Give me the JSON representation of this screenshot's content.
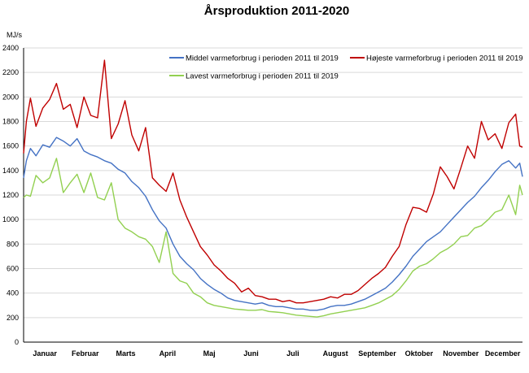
{
  "chart_data": {
    "type": "line",
    "title": "Årsproduktion 2011-2020",
    "ylabel": "MJ/s",
    "xlabel": "",
    "ylim": [
      0,
      2400
    ],
    "yticks": [
      0,
      200,
      400,
      600,
      800,
      1000,
      1200,
      1400,
      1600,
      1800,
      2000,
      2200,
      2400
    ],
    "xlim": [
      1,
      365
    ],
    "grid": true,
    "legend_position": "top",
    "month_labels": [
      "Januar",
      "Februar",
      "Marts",
      "April",
      "Maj",
      "Juni",
      "Juli",
      "August",
      "September",
      "Oktober",
      "November",
      "December"
    ],
    "series": [
      {
        "name": "Middel varmeforbrug i perioden 2011 til 2019",
        "color": "#4472C4",
        "x": [
          1,
          3,
          6,
          10,
          15,
          20,
          25,
          30,
          35,
          40,
          45,
          50,
          55,
          60,
          65,
          70,
          75,
          80,
          85,
          90,
          95,
          100,
          105,
          110,
          115,
          120,
          125,
          130,
          135,
          140,
          145,
          150,
          155,
          160,
          165,
          170,
          175,
          180,
          185,
          190,
          195,
          200,
          205,
          210,
          215,
          220,
          225,
          230,
          235,
          240,
          245,
          250,
          255,
          260,
          265,
          270,
          275,
          280,
          285,
          290,
          295,
          300,
          305,
          310,
          315,
          320,
          325,
          330,
          335,
          340,
          345,
          350,
          355,
          360,
          363,
          365
        ],
        "y": [
          1340,
          1480,
          1580,
          1520,
          1610,
          1590,
          1670,
          1640,
          1600,
          1660,
          1560,
          1530,
          1510,
          1480,
          1460,
          1410,
          1380,
          1310,
          1260,
          1190,
          1080,
          990,
          930,
          800,
          700,
          640,
          590,
          520,
          470,
          430,
          400,
          360,
          340,
          330,
          320,
          310,
          320,
          300,
          290,
          290,
          280,
          270,
          270,
          260,
          260,
          270,
          290,
          300,
          300,
          310,
          330,
          350,
          380,
          410,
          440,
          490,
          550,
          620,
          700,
          760,
          820,
          860,
          900,
          960,
          1020,
          1080,
          1140,
          1190,
          1260,
          1320,
          1390,
          1450,
          1480,
          1420,
          1460,
          1350
        ]
      },
      {
        "name": "Højeste  varmeforbrug i perioden 2011 til 2019",
        "color": "#C00000",
        "x": [
          1,
          3,
          6,
          10,
          15,
          20,
          25,
          30,
          35,
          40,
          45,
          50,
          55,
          60,
          65,
          70,
          75,
          80,
          85,
          90,
          95,
          100,
          105,
          110,
          115,
          120,
          125,
          130,
          135,
          140,
          145,
          150,
          155,
          160,
          165,
          170,
          175,
          180,
          185,
          190,
          195,
          200,
          205,
          210,
          215,
          220,
          225,
          230,
          235,
          240,
          245,
          250,
          255,
          260,
          265,
          270,
          275,
          280,
          285,
          290,
          295,
          300,
          305,
          310,
          315,
          320,
          325,
          330,
          335,
          340,
          345,
          350,
          355,
          360,
          363,
          365
        ],
        "y": [
          1540,
          1800,
          1990,
          1760,
          1910,
          1980,
          2110,
          1900,
          1940,
          1750,
          2000,
          1850,
          1830,
          2300,
          1660,
          1780,
          1970,
          1690,
          1560,
          1750,
          1340,
          1280,
          1230,
          1380,
          1160,
          1020,
          900,
          780,
          710,
          630,
          580,
          520,
          480,
          410,
          440,
          380,
          370,
          350,
          350,
          330,
          340,
          320,
          320,
          330,
          340,
          350,
          370,
          360,
          390,
          390,
          420,
          470,
          520,
          560,
          610,
          700,
          780,
          960,
          1100,
          1090,
          1060,
          1210,
          1430,
          1350,
          1250,
          1420,
          1600,
          1500,
          1800,
          1650,
          1700,
          1580,
          1790,
          1860,
          1600,
          1590
        ]
      },
      {
        "name": "Lavest varmeforbrug i perioden 2011 til 2019",
        "color": "#92D050",
        "x": [
          1,
          3,
          6,
          10,
          15,
          20,
          25,
          30,
          35,
          40,
          45,
          50,
          55,
          60,
          65,
          70,
          75,
          80,
          85,
          90,
          95,
          100,
          105,
          110,
          115,
          120,
          125,
          130,
          135,
          140,
          145,
          150,
          155,
          160,
          165,
          170,
          175,
          180,
          185,
          190,
          195,
          200,
          205,
          210,
          215,
          220,
          225,
          230,
          235,
          240,
          245,
          250,
          255,
          260,
          265,
          270,
          275,
          280,
          285,
          290,
          295,
          300,
          305,
          310,
          315,
          320,
          325,
          330,
          335,
          340,
          345,
          350,
          355,
          360,
          363,
          365
        ],
        "y": [
          1180,
          1200,
          1190,
          1360,
          1300,
          1340,
          1500,
          1220,
          1300,
          1370,
          1220,
          1380,
          1180,
          1160,
          1300,
          1000,
          930,
          900,
          860,
          840,
          780,
          650,
          900,
          560,
          500,
          480,
          400,
          370,
          320,
          300,
          290,
          280,
          270,
          265,
          260,
          260,
          265,
          250,
          245,
          240,
          230,
          220,
          215,
          210,
          205,
          215,
          230,
          240,
          250,
          260,
          270,
          280,
          300,
          320,
          350,
          380,
          430,
          500,
          580,
          620,
          640,
          680,
          730,
          760,
          800,
          860,
          870,
          930,
          950,
          1000,
          1060,
          1080,
          1200,
          1040,
          1280,
          1200
        ]
      }
    ]
  }
}
